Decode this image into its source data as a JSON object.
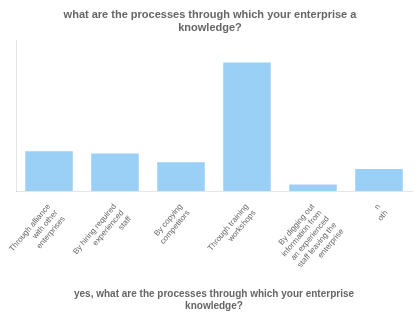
{
  "chart_data": {
    "type": "bar",
    "title": "what are the processes through which your enterprise a\nknowledge?",
    "xlabel": "yes, what are the processes through which your enterprise\nknowledge?",
    "categories": [
      "Through alliance\nwith other\nenterprises",
      "By hiring required\nexperienced\nstaff",
      "By copying\ncompetitors",
      "Through training\nworkshops",
      "By digging out\ninformation from\nan experienced\nstaff leaving the\nenterprise",
      "n\noth"
    ],
    "values": [
      18,
      17,
      13,
      58,
      3,
      10
    ],
    "ylim": [
      0,
      68
    ],
    "grid": false,
    "tick_labels": "x"
  }
}
